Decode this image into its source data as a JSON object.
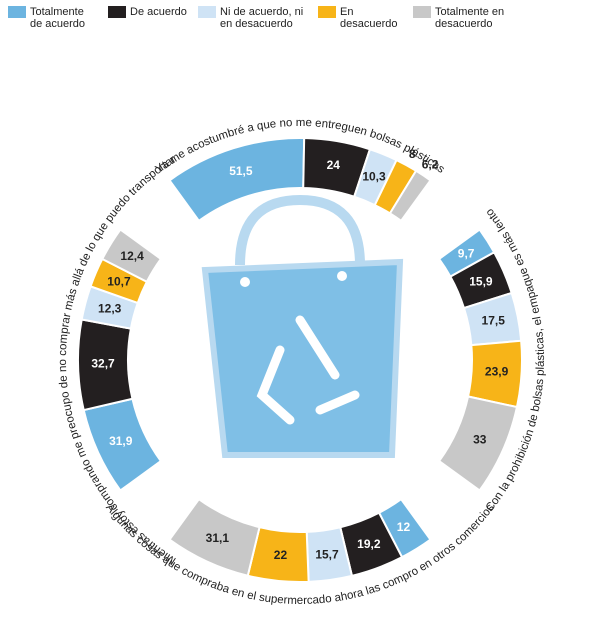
{
  "chart_data": {
    "type": "radial_stacked_bar",
    "categories": [
      "Ya me acostumbré a que no me entreguen bolsas plásticas",
      "Con la prohibición de bolsas plásticas, el empaque es más lento",
      "Algunas cosas que compraba en el supermercado ahora las compro en otros comercios",
      "Mientras estoy comprando me preocupo de no comprar más allá de lo que puedo transportar"
    ],
    "series": [
      {
        "name": "Totalmente de acuerdo",
        "color": "#6cb4e0",
        "values": [
          51.5,
          9.7,
          12,
          31.9
        ],
        "value_labels": [
          "51,5",
          "9,7",
          "12",
          "31,9"
        ]
      },
      {
        "name": "De acuerdo",
        "color": "#231f20",
        "values": [
          24,
          15.9,
          19.2,
          32.7
        ],
        "value_labels": [
          "24",
          "15,9",
          "19,2",
          "32,7"
        ]
      },
      {
        "name": "Ni de acuerdo, ni en desacuerdo",
        "color": "#cfe3f5",
        "values": [
          10.3,
          17.5,
          15.7,
          12.3
        ],
        "value_labels": [
          "10,3",
          "17,5",
          "15,7",
          "12,3"
        ]
      },
      {
        "name": "En desacuerdo",
        "color": "#f7b418",
        "values": [
          8,
          23.9,
          22,
          10.7
        ],
        "value_labels": [
          "8",
          "23,9",
          "22",
          "10,7"
        ]
      },
      {
        "name": "Totalmente en desacuerdo",
        "color": "#c8c8c8",
        "values": [
          6.2,
          33,
          31.1,
          12.4
        ],
        "value_labels": [
          "6,2",
          "33",
          "31,1",
          "12,4"
        ]
      }
    ]
  }
}
